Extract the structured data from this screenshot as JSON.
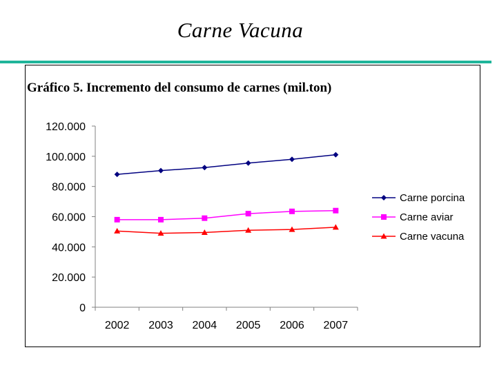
{
  "slide": {
    "title": "Carne Vacuna",
    "rule_color": "#1fb59a"
  },
  "chart_data": {
    "type": "line",
    "title": "Gráfico 5. Incremento del consumo de carnes (mil.ton)",
    "xlabel": "",
    "ylabel": "",
    "categories": [
      "2002",
      "2003",
      "2004",
      "2005",
      "2006",
      "2007"
    ],
    "ylim": [
      0,
      120000
    ],
    "yticks": [
      0,
      20000,
      40000,
      60000,
      80000,
      100000,
      120000
    ],
    "ytick_labels": [
      "0",
      "20.000",
      "40.000",
      "60.000",
      "80.000",
      "100.000",
      "120.000"
    ],
    "grid": false,
    "legend_position": "right",
    "series": [
      {
        "name": "Carne porcina",
        "values": [
          88000,
          90500,
          92500,
          95500,
          98000,
          101000
        ],
        "color": "#000080",
        "marker": "diamond"
      },
      {
        "name": "Carne aviar",
        "values": [
          58000,
          58000,
          59000,
          62000,
          63500,
          64000
        ],
        "color": "#ff00ff",
        "marker": "square"
      },
      {
        "name": "Carne vacuna",
        "values": [
          50500,
          49000,
          49500,
          51000,
          51500,
          53000
        ],
        "color": "#ff0000",
        "marker": "triangle"
      }
    ]
  }
}
